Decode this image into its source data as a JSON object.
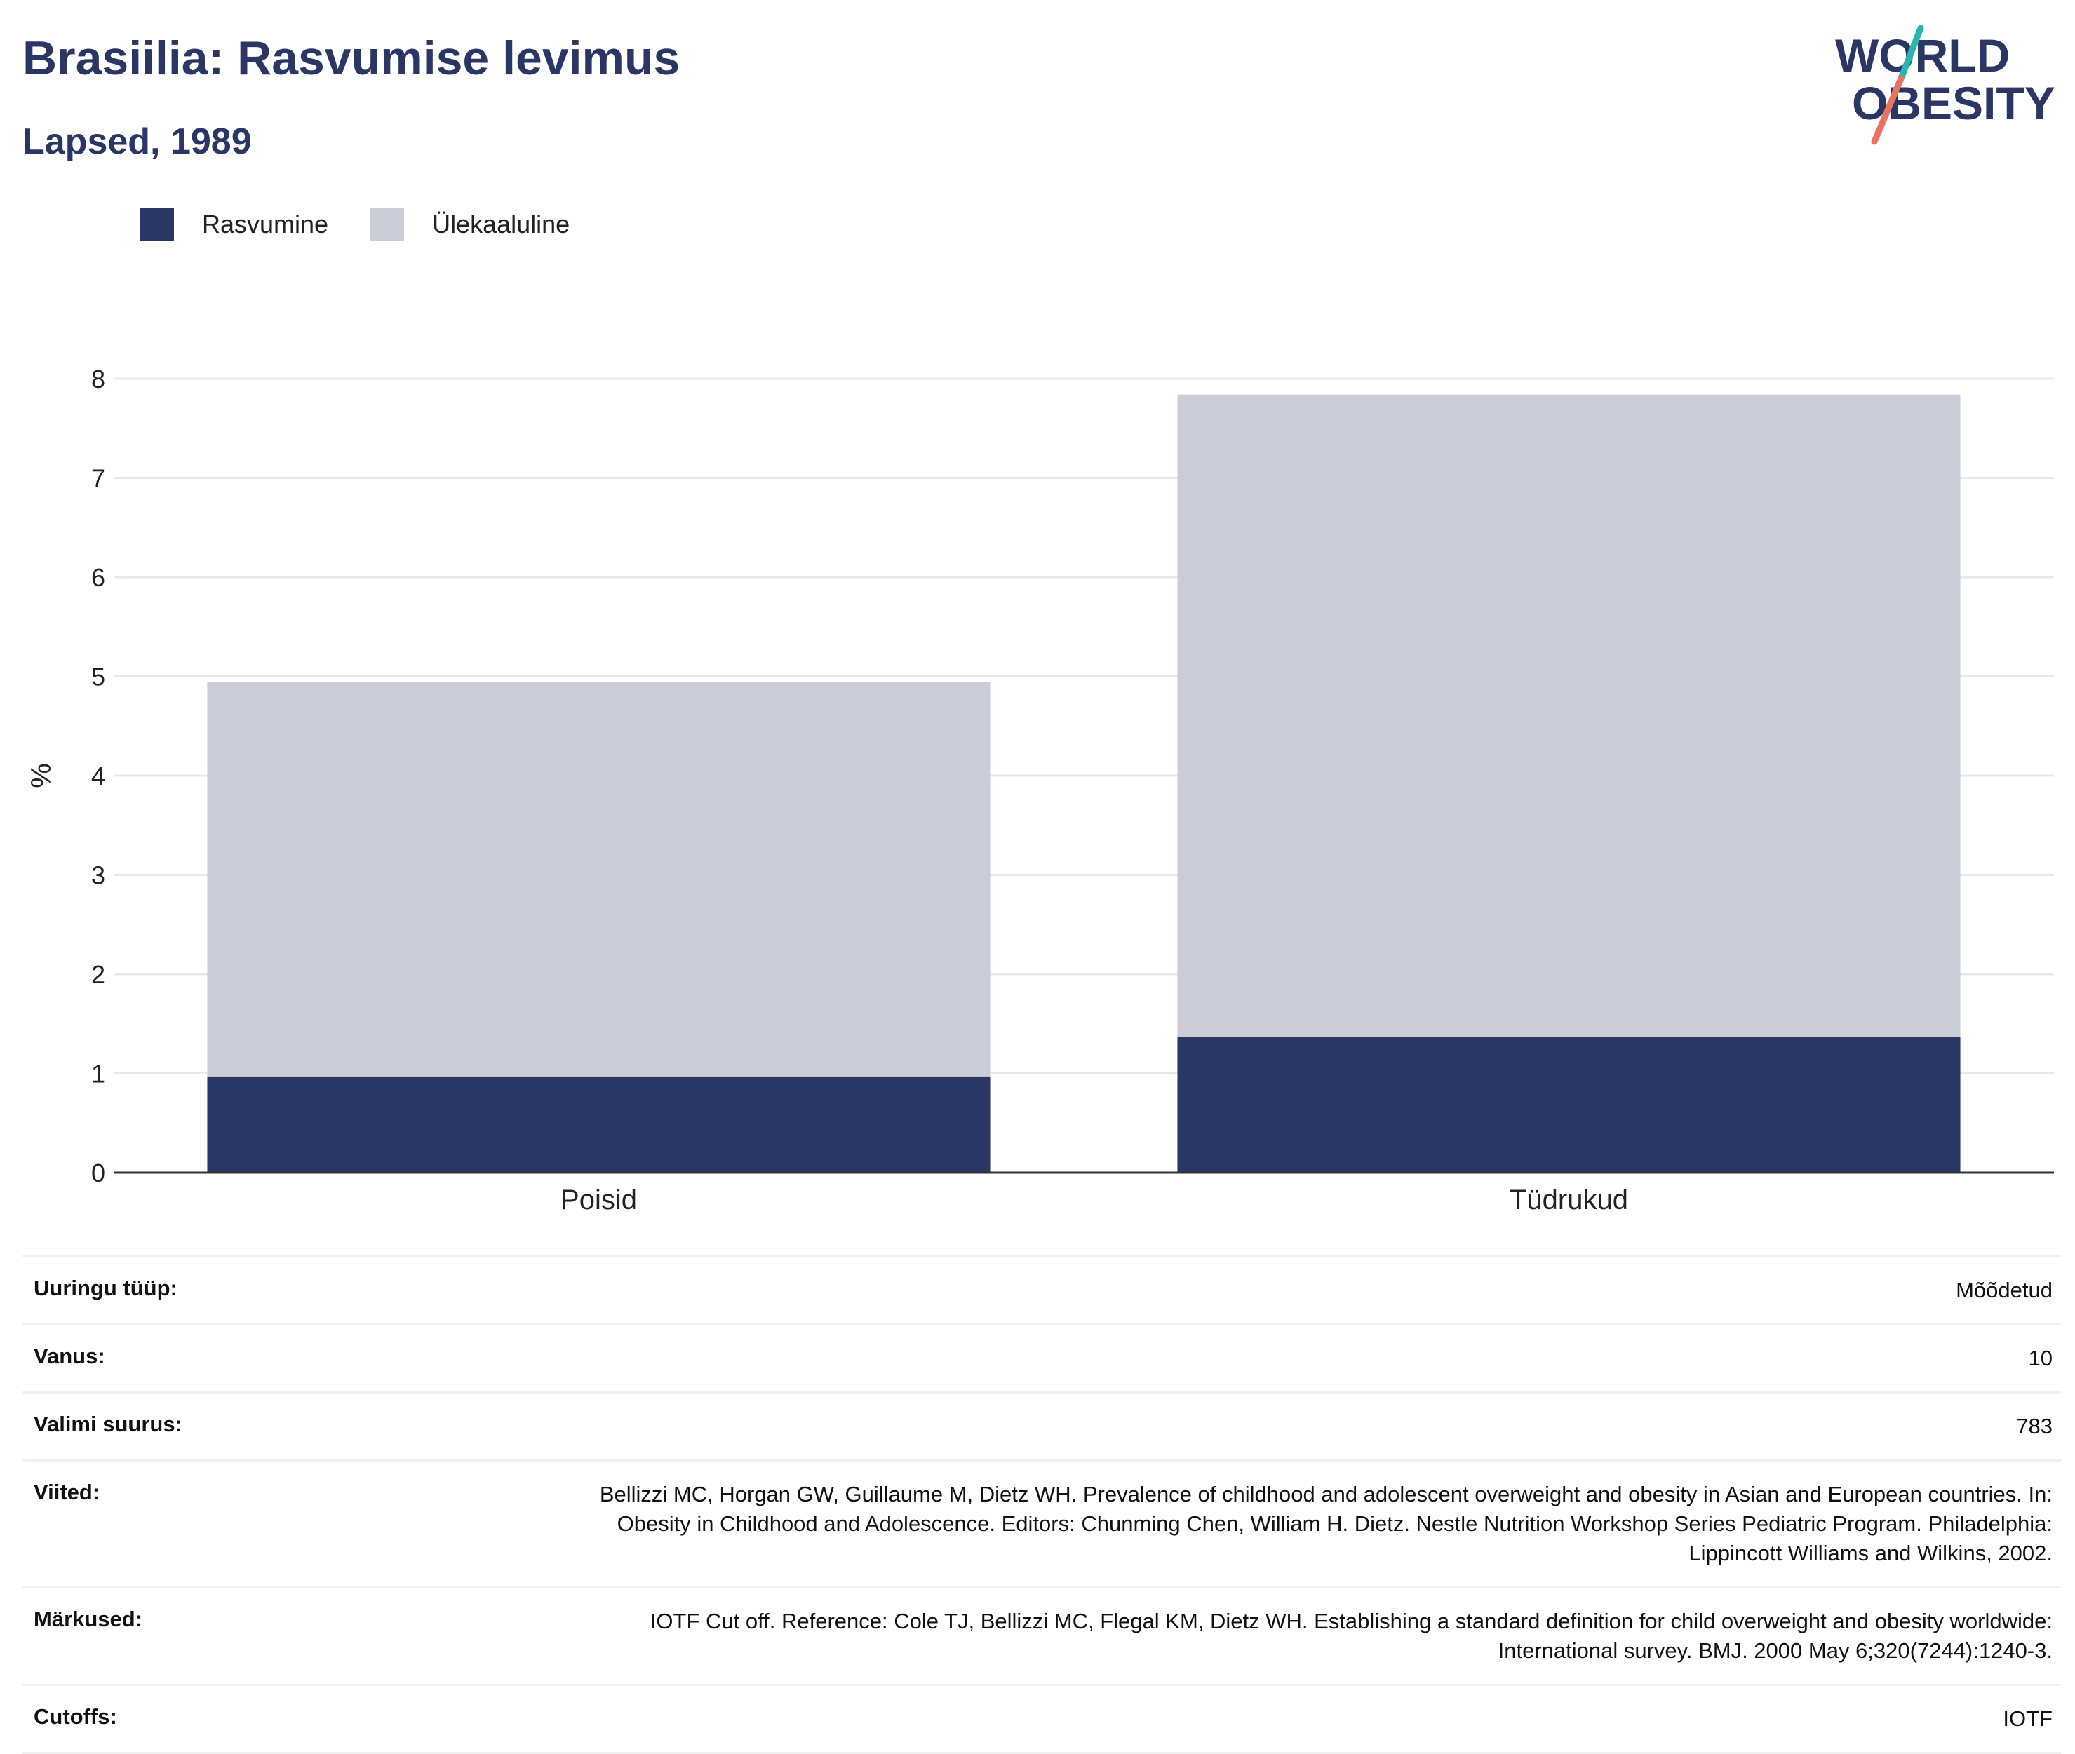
{
  "header": {
    "title": "Brasiilia: Rasvumise levimus",
    "subtitle": "Lapsed, 1989"
  },
  "logo": {
    "line1": "WORLD",
    "line2": "OBESITY",
    "accent_teal": "#2bb5b2",
    "accent_coral": "#e8735f",
    "text_color": "#2a3663"
  },
  "colors": {
    "obesity": "#2a3663",
    "overweight": "#caccd8",
    "grid": "#e6e8ee",
    "axis": "#333333"
  },
  "chart_data": {
    "type": "bar",
    "stacked": true,
    "categories": [
      "Poisid",
      "Tüdrukud"
    ],
    "series": [
      {
        "name": "Rasvumine",
        "values": [
          0.97,
          1.37
        ]
      },
      {
        "name": "Ülekaaluline",
        "values": [
          3.97,
          6.47
        ]
      }
    ],
    "totals": [
      4.94,
      7.84
    ],
    "ylabel": "%",
    "ylim": [
      0,
      8
    ],
    "yticks": [
      "0",
      "1",
      "2",
      "3",
      "4",
      "5",
      "6",
      "7",
      "8"
    ],
    "grid": true,
    "legend": "top-left"
  },
  "meta": {
    "rows": [
      {
        "key": "Uuringu tüüp:",
        "value": "Mõõdetud"
      },
      {
        "key": "Vanus:",
        "value": "10"
      },
      {
        "key": "Valimi suurus:",
        "value": "783"
      },
      {
        "key": "Viited:",
        "value": "Bellizzi MC, Horgan GW, Guillaume M, Dietz WH. Prevalence of childhood and adolescent overweight and obesity in Asian and European countries. In: Obesity in Childhood and Adolescence. Editors: Chunming Chen, William H. Dietz. Nestle Nutrition Workshop Series Pediatric Program. Philadelphia: Lippincott Williams and Wilkins, 2002."
      },
      {
        "key": "Märkused:",
        "value": "IOTF Cut off. Reference: Cole TJ, Bellizzi MC, Flegal KM, Dietz WH. Establishing a standard definition for child overweight and obesity worldwide: International survey. BMJ. 2000 May 6;320(7244):1240-3."
      },
      {
        "key": "Cutoffs:",
        "value": "IOTF"
      }
    ]
  }
}
